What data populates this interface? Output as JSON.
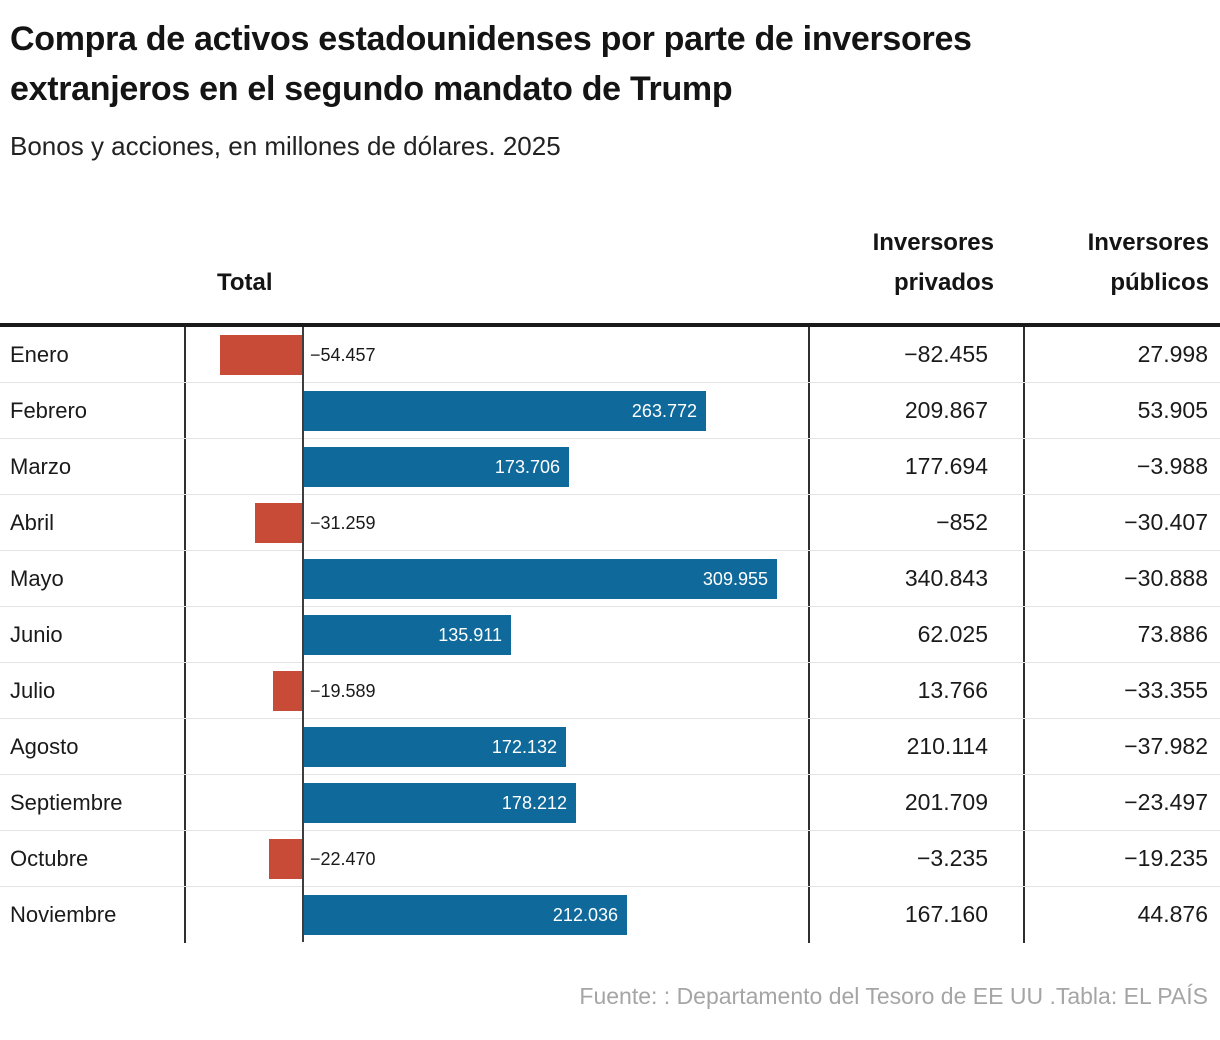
{
  "header": {
    "title_lines": [
      "Compra de activos estadounidenses por parte de inversores",
      "extranjeros en el segundo mandato de Trump"
    ],
    "subtitle": "Bonos y acciones, en millones de dólares. 2025"
  },
  "columns": {
    "total": "Total",
    "private": "Inversores privados",
    "public": "Inversores públicos"
  },
  "rows": [
    {
      "month": "Enero",
      "total_value": -54457,
      "total_label": "−54.457",
      "private": "−82.455",
      "public": "27.998"
    },
    {
      "month": "Febrero",
      "total_value": 263772,
      "total_label": "263.772",
      "private": "209.867",
      "public": "53.905"
    },
    {
      "month": "Marzo",
      "total_value": 173706,
      "total_label": "173.706",
      "private": "177.694",
      "public": "−3.988"
    },
    {
      "month": "Abril",
      "total_value": -31259,
      "total_label": "−31.259",
      "private": "−852",
      "public": "−30.407"
    },
    {
      "month": "Mayo",
      "total_value": 309955,
      "total_label": "309.955",
      "private": "340.843",
      "public": "−30.888"
    },
    {
      "month": "Junio",
      "total_value": 135911,
      "total_label": "135.911",
      "private": "62.025",
      "public": "73.886"
    },
    {
      "month": "Julio",
      "total_value": -19589,
      "total_label": "−19.589",
      "private": "13.766",
      "public": "−33.355"
    },
    {
      "month": "Agosto",
      "total_value": 172132,
      "total_label": "172.132",
      "private": "210.114",
      "public": "−37.982"
    },
    {
      "month": "Septiembre",
      "total_value": 178212,
      "total_label": "178.212",
      "private": "201.709",
      "public": "−23.497"
    },
    {
      "month": "Octubre",
      "total_value": -22470,
      "total_label": "−22.470",
      "private": "−3.235",
      "public": "−19.235"
    },
    {
      "month": "Noviembre",
      "total_value": 212036,
      "total_label": "212.036",
      "private": "167.160",
      "public": "44.876"
    }
  ],
  "chart_data": {
    "type": "bar",
    "orientation": "horizontal",
    "title": "Compra de activos estadounidenses por parte de inversores extranjeros en el segundo mandato de Trump",
    "subtitle": "Bonos y acciones, en millones de dólares. 2025",
    "categories": [
      "Enero",
      "Febrero",
      "Marzo",
      "Abril",
      "Mayo",
      "Junio",
      "Julio",
      "Agosto",
      "Septiembre",
      "Octubre",
      "Noviembre"
    ],
    "series": [
      {
        "name": "Total",
        "values": [
          -54457,
          263772,
          173706,
          -31259,
          309955,
          135911,
          -19589,
          172132,
          178212,
          -22470,
          212036
        ]
      },
      {
        "name": "Inversores privados",
        "values": [
          -82455,
          209867,
          177694,
          -852,
          340843,
          62025,
          13766,
          210114,
          201709,
          -3235,
          167160
        ]
      },
      {
        "name": "Inversores públicos",
        "values": [
          27998,
          53905,
          -3988,
          -30407,
          -30888,
          73886,
          -33355,
          -37982,
          -23497,
          -19235,
          44876
        ]
      }
    ],
    "plotted_series": "Total",
    "value_format": "es-ES thousands, dot separator, minus U+2212",
    "colors": {
      "positive": "#0f6a9b",
      "negative": "#c84b37"
    },
    "grid": false,
    "legend": false,
    "axis_labels_shown": false
  },
  "footer": {
    "source": "Fuente: : Departamento del Tesoro de EE UU .Tabla: EL PAÍS"
  }
}
